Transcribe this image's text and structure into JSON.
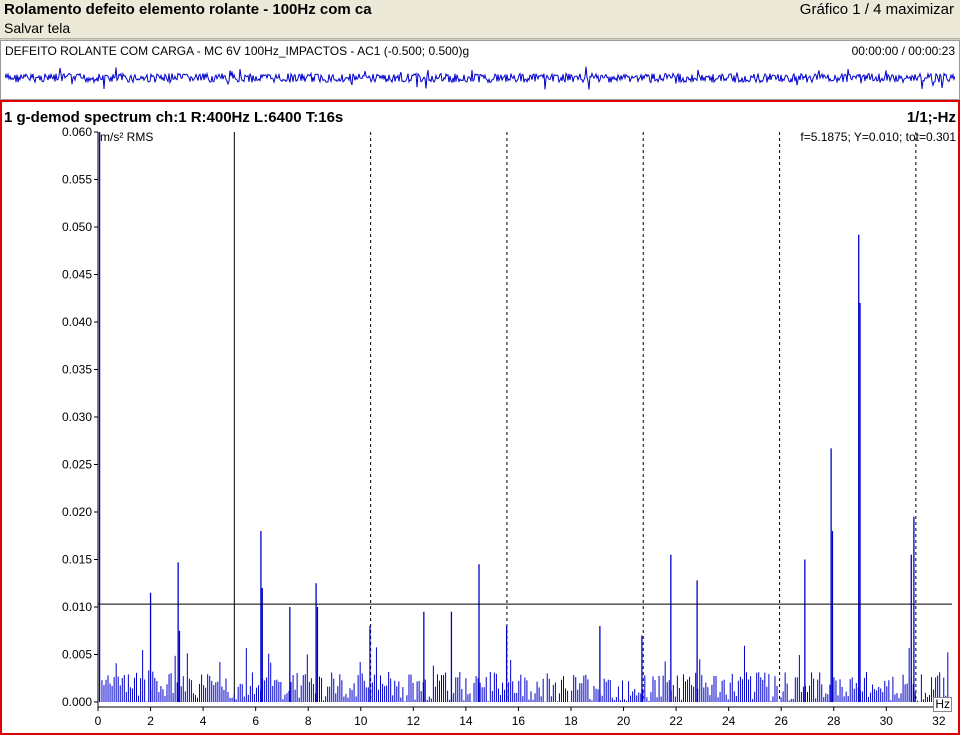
{
  "window": {
    "title": "Rolamento defeito elemento rolante - 100Hz com ca",
    "menu_save": "Salvar tela",
    "graph_indicator": "Gráfico 1 / 4 maximizar"
  },
  "waveform": {
    "label": "DEFEITO ROLANTE COM CARGA - MC 6V 100Hz_IMPACTOS - AC1 (-0.500; 0.500)g",
    "time": "00:00:00 / 00:00:23",
    "color": "#0000cc"
  },
  "spectrum": {
    "title": "1 g-demod spectrum ch:1 R:400Hz L:6400 T:16s",
    "scale": "1/1;-Hz",
    "y_unit": "m/s² RMS",
    "x_unit": "Hz",
    "cursor_readout": "f=5.1875; Y=0.010; tot=0.301",
    "cursor_freq": 5.1875,
    "reference_level": 0.0103,
    "harmonic_markers": [
      10.375,
      15.5625,
      20.75,
      25.9375,
      31.125
    ]
  },
  "chart_data": {
    "type": "bar",
    "title": "1 g-demod spectrum ch:1 R:400Hz L:6400 T:16s",
    "xlabel": "Hz",
    "ylabel": "m/s² RMS",
    "xlim": [
      0,
      32.5
    ],
    "ylim": [
      0,
      0.06
    ],
    "x_ticks": [
      0,
      2,
      4,
      6,
      8,
      10,
      12,
      14,
      16,
      18,
      20,
      22,
      24,
      26,
      28,
      30,
      32
    ],
    "y_ticks": [
      "0.000",
      "0.005",
      "0.010",
      "0.015",
      "0.020",
      "0.025",
      "0.030",
      "0.035",
      "0.040",
      "0.045",
      "0.050",
      "0.055",
      "0.060"
    ],
    "grid": false,
    "color": "#0000cc",
    "peaks": [
      {
        "x": 0.06,
        "y": 0.06
      },
      {
        "x": 2.0,
        "y": 0.0115
      },
      {
        "x": 3.05,
        "y": 0.0147
      },
      {
        "x": 3.1,
        "y": 0.0075
      },
      {
        "x": 6.2,
        "y": 0.018
      },
      {
        "x": 6.25,
        "y": 0.012
      },
      {
        "x": 7.3,
        "y": 0.01
      },
      {
        "x": 8.3,
        "y": 0.0125
      },
      {
        "x": 8.35,
        "y": 0.01
      },
      {
        "x": 10.35,
        "y": 0.008
      },
      {
        "x": 12.4,
        "y": 0.0095
      },
      {
        "x": 13.45,
        "y": 0.0095
      },
      {
        "x": 14.5,
        "y": 0.0145
      },
      {
        "x": 15.55,
        "y": 0.008
      },
      {
        "x": 19.1,
        "y": 0.008
      },
      {
        "x": 20.7,
        "y": 0.007
      },
      {
        "x": 21.8,
        "y": 0.0155
      },
      {
        "x": 22.8,
        "y": 0.0128
      },
      {
        "x": 26.9,
        "y": 0.015
      },
      {
        "x": 27.9,
        "y": 0.0267
      },
      {
        "x": 27.95,
        "y": 0.018
      },
      {
        "x": 28.95,
        "y": 0.0492
      },
      {
        "x": 29.0,
        "y": 0.042
      },
      {
        "x": 30.95,
        "y": 0.0155
      },
      {
        "x": 31.05,
        "y": 0.0195
      }
    ]
  }
}
